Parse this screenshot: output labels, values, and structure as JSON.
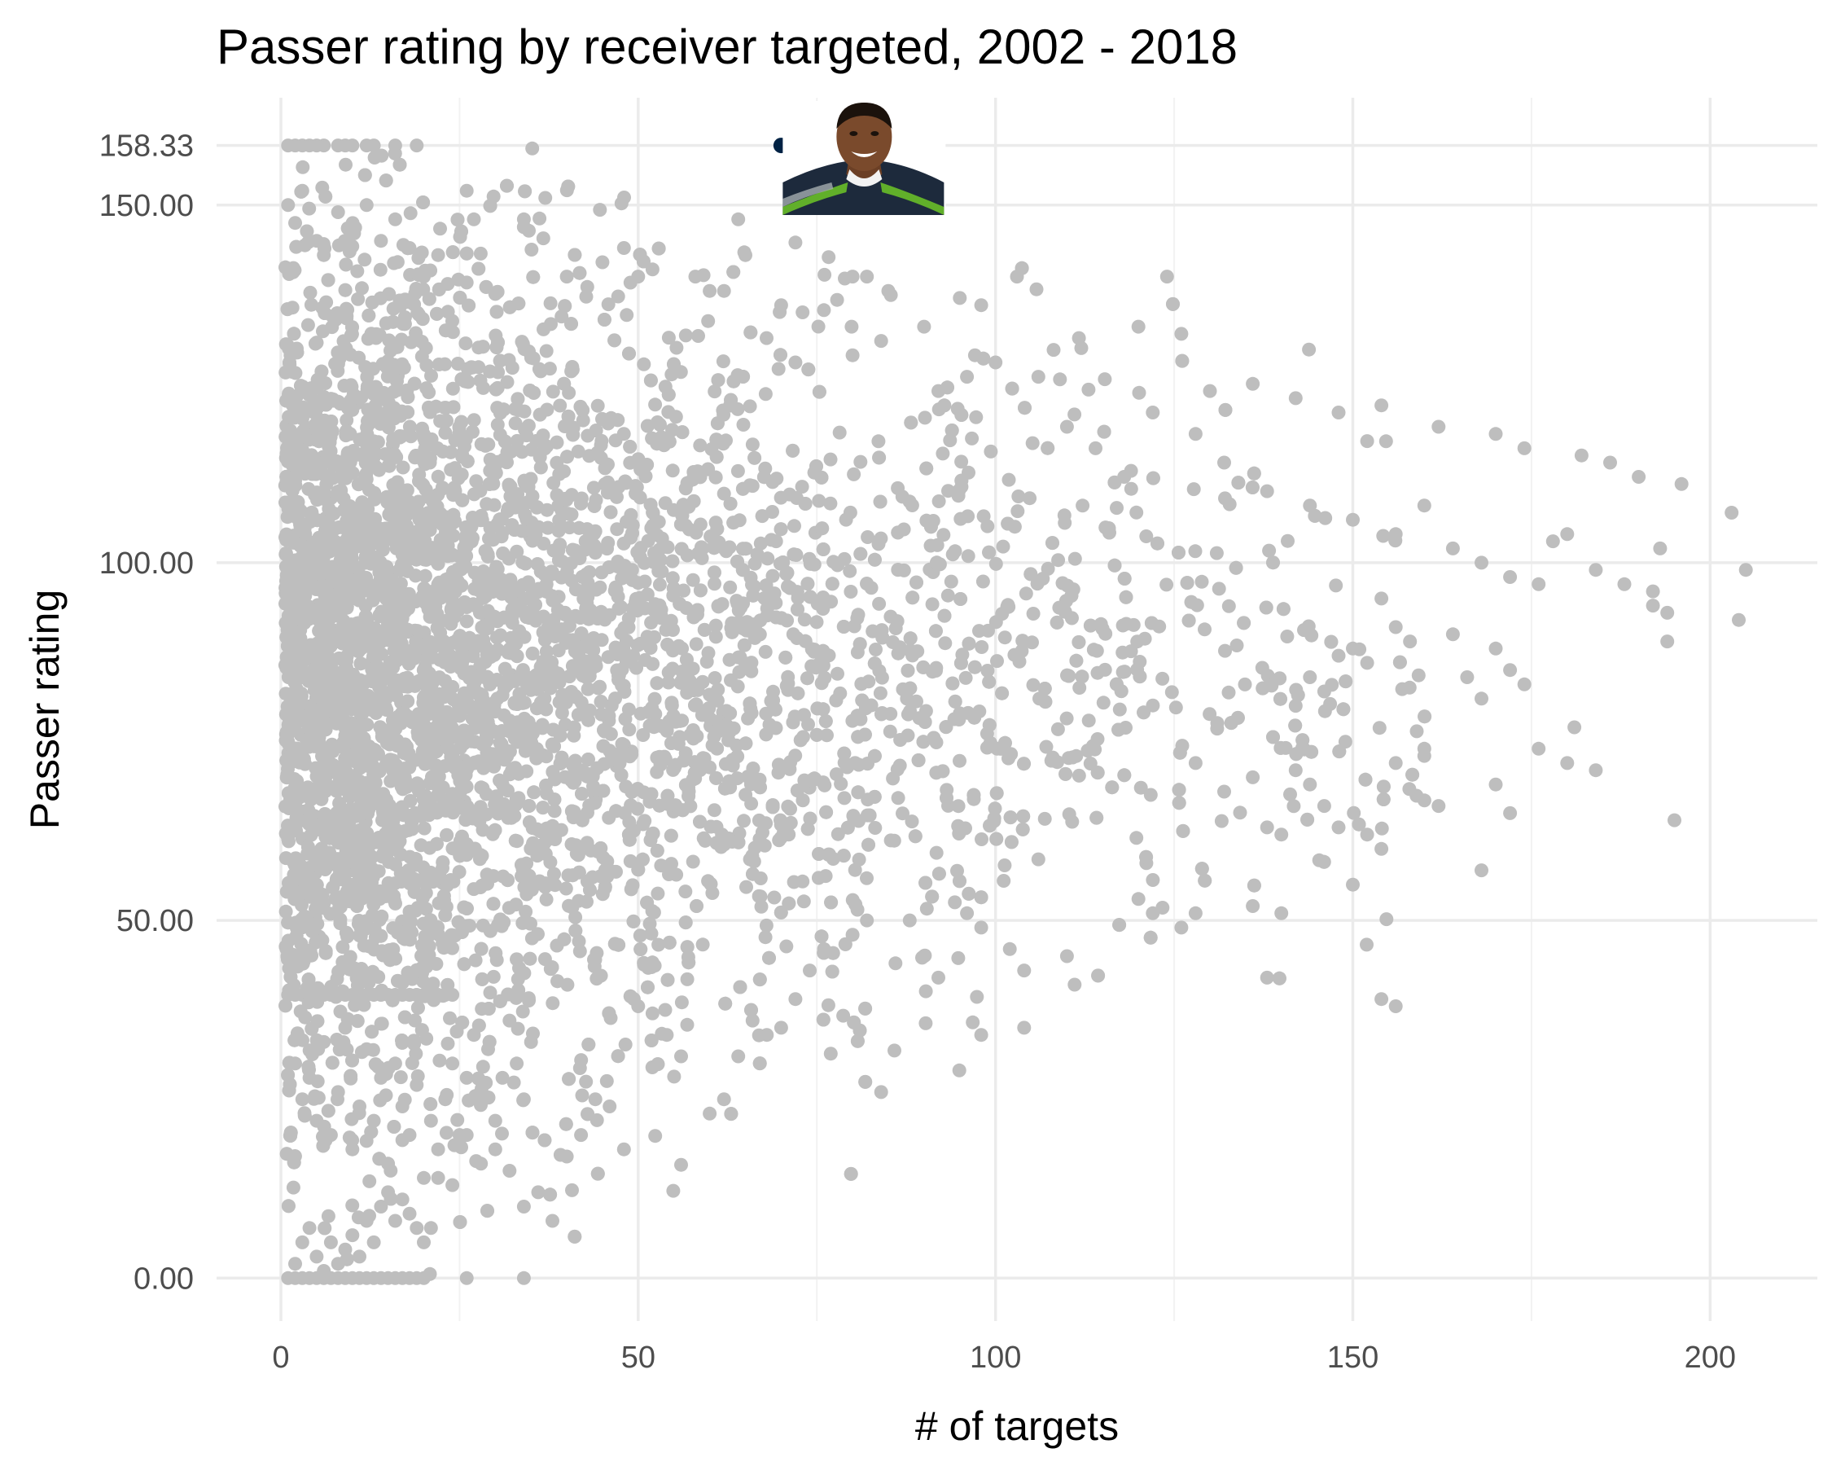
{
  "chart_data": {
    "type": "scatter",
    "title": "Passer rating by receiver targeted, 2002 - 2018",
    "xlabel": "# of targets",
    "ylabel": "Passer rating",
    "xlim": [
      -9,
      215
    ],
    "ylim": [
      -6,
      165
    ],
    "x_ticks": [
      0,
      50,
      100,
      150,
      200
    ],
    "x_tick_labels": [
      "0",
      "50",
      "100",
      "150",
      "200"
    ],
    "x_minor_ticks": [
      25,
      75,
      125,
      175
    ],
    "y_ticks": [
      0,
      50,
      100,
      150,
      158.33
    ],
    "y_tick_labels": [
      "0.00",
      "50.00",
      "100.00",
      "150.00",
      "158.33"
    ],
    "grid": true,
    "point_color": "#bebebe",
    "highlight_color": "#002244",
    "highlight": {
      "x": 70,
      "y": 158.33,
      "image": "seahawks-player-headshot"
    },
    "points": [
      [
        1,
        158.33
      ],
      [
        2,
        158.33
      ],
      [
        3,
        158.33
      ],
      [
        4,
        158.33
      ],
      [
        5,
        158.33
      ],
      [
        6,
        158.33
      ],
      [
        8,
        158.33
      ],
      [
        9,
        158.33
      ],
      [
        10,
        158.33
      ],
      [
        12,
        158.33
      ],
      [
        13,
        158.33
      ],
      [
        16,
        158.33
      ],
      [
        19,
        158.33
      ],
      [
        1,
        0
      ],
      [
        2,
        0
      ],
      [
        3,
        0
      ],
      [
        4,
        0
      ],
      [
        5,
        0
      ],
      [
        6,
        0
      ],
      [
        7,
        0
      ],
      [
        8,
        0
      ],
      [
        9,
        0
      ],
      [
        10,
        0
      ],
      [
        11,
        0
      ],
      [
        12,
        0
      ],
      [
        13,
        0
      ],
      [
        14,
        0
      ],
      [
        15,
        0
      ],
      [
        16,
        0
      ],
      [
        17,
        0
      ],
      [
        18,
        0
      ],
      [
        19,
        0
      ],
      [
        20,
        0
      ],
      [
        26,
        0
      ],
      [
        34,
        0
      ],
      [
        1,
        39.6
      ],
      [
        2,
        39.6
      ],
      [
        3,
        39.6
      ],
      [
        4,
        39.6
      ],
      [
        5,
        39.6
      ],
      [
        6,
        39.6
      ],
      [
        7,
        39.6
      ],
      [
        8,
        39.6
      ],
      [
        9,
        39.6
      ],
      [
        10,
        39.6
      ],
      [
        11,
        39.6
      ],
      [
        12,
        39.6
      ],
      [
        13,
        39.6
      ],
      [
        14,
        39.6
      ],
      [
        15,
        39.6
      ],
      [
        16,
        39.6
      ],
      [
        17,
        39.6
      ],
      [
        18,
        39.6
      ],
      [
        19,
        39.6
      ],
      [
        20,
        39.6
      ],
      [
        21,
        39.6
      ],
      [
        22,
        39.6
      ],
      [
        23,
        39.6
      ],
      [
        24,
        39.6
      ],
      [
        1,
        150
      ],
      [
        2,
        147.5
      ],
      [
        3,
        152
      ],
      [
        5,
        145
      ],
      [
        6,
        143
      ],
      [
        8,
        149
      ],
      [
        10,
        147
      ],
      [
        12,
        150
      ],
      [
        14,
        145
      ],
      [
        16,
        148
      ],
      [
        18,
        144
      ],
      [
        20,
        140
      ],
      [
        22,
        143
      ],
      [
        26,
        152
      ],
      [
        27,
        148
      ],
      [
        34,
        148
      ],
      [
        37,
        151
      ],
      [
        40,
        140
      ],
      [
        45,
        142
      ],
      [
        48,
        144
      ],
      [
        50,
        140
      ],
      [
        52,
        141
      ],
      [
        58,
        140
      ],
      [
        60,
        138
      ],
      [
        62,
        138
      ],
      [
        64,
        148
      ],
      [
        65,
        143
      ],
      [
        70,
        136
      ],
      [
        73,
        135
      ],
      [
        80,
        140
      ],
      [
        82,
        140
      ],
      [
        85,
        138
      ],
      [
        90,
        133
      ],
      [
        95,
        137
      ],
      [
        98,
        136
      ],
      [
        103,
        140
      ],
      [
        124,
        140
      ],
      [
        72,
        128
      ],
      [
        80,
        129
      ],
      [
        84,
        131
      ],
      [
        92,
        124
      ],
      [
        96,
        126
      ],
      [
        100,
        128
      ],
      [
        106,
        126
      ],
      [
        112,
        130
      ],
      [
        120,
        133
      ],
      [
        126,
        132
      ],
      [
        130,
        124
      ],
      [
        136,
        125
      ],
      [
        142,
        123
      ],
      [
        148,
        121
      ],
      [
        152,
        117
      ],
      [
        154,
        122
      ],
      [
        162,
        119
      ],
      [
        170,
        118
      ],
      [
        174,
        116
      ],
      [
        182,
        115
      ],
      [
        186,
        114
      ],
      [
        190,
        112
      ],
      [
        196,
        111
      ],
      [
        110,
        119
      ],
      [
        114,
        116
      ],
      [
        118,
        112
      ],
      [
        122,
        121
      ],
      [
        128,
        118
      ],
      [
        132,
        114
      ],
      [
        138,
        110
      ],
      [
        144,
        108
      ],
      [
        150,
        106
      ],
      [
        156,
        104
      ],
      [
        160,
        108
      ],
      [
        164,
        102
      ],
      [
        168,
        100
      ],
      [
        172,
        98
      ],
      [
        176,
        97
      ],
      [
        178,
        103
      ],
      [
        180,
        104
      ],
      [
        184,
        99
      ],
      [
        188,
        97
      ],
      [
        192,
        94
      ],
      [
        194,
        93
      ],
      [
        203,
        107
      ],
      [
        204,
        92
      ],
      [
        205,
        99
      ],
      [
        193,
        102
      ],
      [
        192,
        96
      ],
      [
        194,
        89
      ],
      [
        195,
        64
      ],
      [
        184,
        71
      ],
      [
        181,
        77
      ],
      [
        180,
        72
      ],
      [
        176,
        74
      ],
      [
        174,
        83
      ],
      [
        172,
        85
      ],
      [
        170,
        88
      ],
      [
        168,
        81
      ],
      [
        166,
        84
      ],
      [
        164,
        90
      ],
      [
        160,
        74
      ],
      [
        158,
        89
      ],
      [
        156,
        91
      ],
      [
        154,
        95
      ],
      [
        152,
        86
      ],
      [
        150,
        88
      ],
      [
        148,
        87
      ],
      [
        146,
        82
      ],
      [
        144,
        84
      ],
      [
        142,
        80
      ],
      [
        168,
        57
      ],
      [
        170,
        69
      ],
      [
        172,
        65
      ],
      [
        162,
        66
      ],
      [
        160,
        73
      ],
      [
        156,
        72
      ],
      [
        154,
        60
      ],
      [
        152,
        62
      ],
      [
        150,
        55
      ],
      [
        148,
        63
      ],
      [
        146,
        66
      ],
      [
        144,
        69
      ],
      [
        142,
        71
      ],
      [
        140,
        62
      ],
      [
        138,
        63
      ],
      [
        136,
        70
      ],
      [
        132,
        68
      ],
      [
        128,
        72
      ],
      [
        154,
        39
      ],
      [
        156,
        38
      ],
      [
        138,
        42
      ],
      [
        140,
        51
      ],
      [
        136,
        52
      ],
      [
        126,
        49
      ],
      [
        128,
        51
      ],
      [
        120,
        53
      ],
      [
        122,
        51
      ],
      [
        110,
        45
      ],
      [
        104,
        43
      ],
      [
        102,
        46
      ],
      [
        98,
        34
      ],
      [
        104,
        35
      ],
      [
        98,
        49
      ],
      [
        96,
        51
      ],
      [
        92,
        42
      ],
      [
        90,
        45
      ],
      [
        88,
        50
      ],
      [
        86,
        44
      ],
      [
        84,
        26
      ],
      [
        82,
        50
      ],
      [
        80,
        48
      ],
      [
        76,
        46
      ],
      [
        74,
        43
      ],
      [
        72,
        39
      ],
      [
        70,
        35
      ],
      [
        68,
        34
      ],
      [
        66,
        36
      ],
      [
        64,
        31
      ],
      [
        62,
        25
      ],
      [
        60,
        23
      ],
      [
        56,
        31
      ],
      [
        54,
        34
      ],
      [
        52,
        37
      ],
      [
        50,
        38
      ],
      [
        48,
        18
      ],
      [
        46,
        24
      ],
      [
        44,
        25
      ],
      [
        42,
        20
      ],
      [
        40,
        17
      ],
      [
        38,
        8
      ],
      [
        36,
        12
      ],
      [
        34,
        10
      ],
      [
        32,
        15
      ],
      [
        30,
        18
      ],
      [
        28,
        16
      ],
      [
        26,
        20
      ],
      [
        24,
        13
      ],
      [
        22,
        14
      ],
      [
        21,
        7
      ],
      [
        20,
        5
      ],
      [
        19,
        7
      ],
      [
        18,
        9
      ],
      [
        17,
        11
      ],
      [
        16,
        8
      ],
      [
        15,
        12
      ],
      [
        14,
        10
      ],
      [
        13,
        5
      ],
      [
        12,
        8
      ],
      [
        11,
        3
      ],
      [
        10,
        6
      ],
      [
        9,
        4
      ],
      [
        8,
        2
      ],
      [
        7,
        5
      ],
      [
        6,
        1
      ],
      [
        5,
        3
      ],
      [
        4,
        7
      ],
      [
        3,
        5
      ],
      [
        2,
        2
      ],
      [
        2,
        30
      ],
      [
        3,
        25
      ],
      [
        4,
        28
      ],
      [
        5,
        22
      ],
      [
        6,
        33
      ],
      [
        7,
        20
      ],
      [
        8,
        26
      ],
      [
        9,
        35
      ],
      [
        10,
        18
      ],
      [
        11,
        24
      ],
      [
        12,
        32
      ],
      [
        13,
        22
      ],
      [
        14,
        28
      ],
      [
        15,
        16
      ],
      [
        16,
        30
      ],
      [
        17,
        24
      ],
      [
        18,
        20
      ],
      [
        19,
        27
      ],
      [
        20,
        14
      ],
      [
        21,
        22
      ],
      [
        22,
        18
      ],
      [
        23,
        25
      ],
      [
        24,
        30
      ],
      [
        25,
        20
      ],
      [
        26,
        28
      ],
      [
        27,
        34
      ],
      [
        28,
        26
      ],
      [
        29,
        32
      ],
      [
        30,
        22
      ],
      [
        31,
        28
      ],
      [
        32,
        36
      ],
      [
        33,
        30
      ],
      [
        34,
        25
      ],
      [
        35,
        33
      ]
    ],
    "dense_cloud": {
      "x_range": [
        0,
        205
      ],
      "y_center": 85,
      "note": "several thousand overlapping points concentrated at low target counts"
    }
  }
}
